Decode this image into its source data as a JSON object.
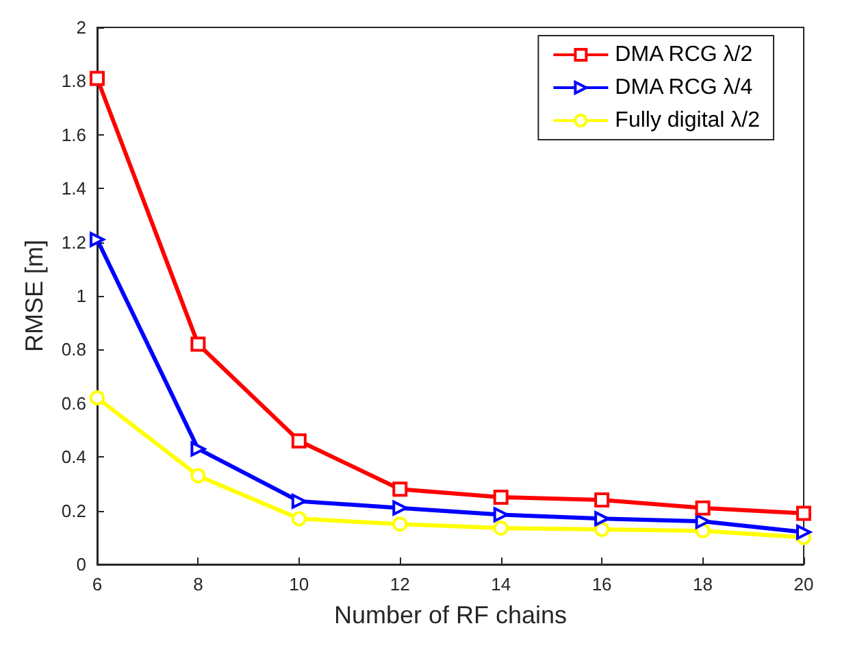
{
  "chart_data": {
    "type": "line",
    "xlabel": "Number of RF chains",
    "ylabel": "RMSE [m]",
    "x": [
      6,
      8,
      10,
      12,
      14,
      16,
      18,
      20
    ],
    "series": [
      {
        "name": "DMA RCG λ/2",
        "color": "#ff0000",
        "marker": "square",
        "values": [
          1.81,
          0.82,
          0.46,
          0.28,
          0.25,
          0.24,
          0.21,
          0.19
        ]
      },
      {
        "name": "DMA RCG λ/4",
        "color": "#0000ff",
        "marker": "triangle",
        "values": [
          1.21,
          0.43,
          0.235,
          0.21,
          0.185,
          0.17,
          0.16,
          0.12
        ]
      },
      {
        "name": "Fully digital λ/2",
        "color": "#ffff00",
        "marker": "circle",
        "values": [
          0.62,
          0.33,
          0.17,
          0.15,
          0.135,
          0.13,
          0.125,
          0.1
        ]
      }
    ],
    "xlim": [
      6,
      20
    ],
    "xticks": [
      6,
      8,
      10,
      12,
      14,
      16,
      18,
      20
    ],
    "ylim": [
      0,
      2
    ],
    "yticks": [
      0,
      0.2,
      0.4,
      0.6,
      0.8,
      1,
      1.2,
      1.4,
      1.6,
      1.8,
      2
    ],
    "grid": false,
    "legend": "top right",
    "line_style": "solid"
  }
}
